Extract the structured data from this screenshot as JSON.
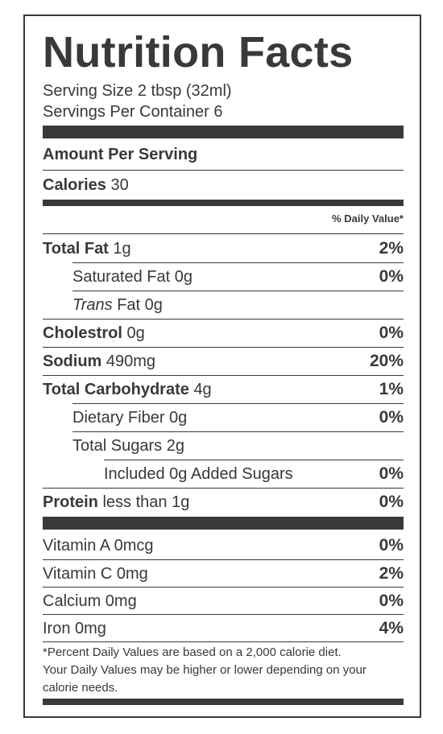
{
  "title": "Nutrition Facts",
  "serving_size": "Serving Size 2 tbsp (32ml)",
  "servings_per_container": "Servings Per Container 6",
  "amount_per_serving": "Amount Per Serving",
  "calories": {
    "label": "Calories",
    "value": "30"
  },
  "daily_value_header": "% Daily Value*",
  "nutrients": {
    "total_fat": {
      "label": "Total Fat",
      "amount": "1g",
      "dv": "2%"
    },
    "saturated_fat": {
      "label": "Saturated Fat 0g",
      "dv": "0%"
    },
    "trans_fat": {
      "label_italic": "Trans",
      "label_rest": "Fat 0g"
    },
    "cholesterol": {
      "label": "Cholestrol",
      "amount": "0g",
      "dv": "0%"
    },
    "sodium": {
      "label": "Sodium",
      "amount": "490mg",
      "dv": "20%"
    },
    "total_carbohydrate": {
      "label": "Total Carbohydrate",
      "amount": "4g",
      "dv": "1%"
    },
    "dietary_fiber": {
      "label": "Dietary Fiber 0g",
      "dv": "0%"
    },
    "total_sugars": {
      "label": "Total Sugars 2g"
    },
    "added_sugars": {
      "label": "Included 0g Added Sugars",
      "dv": "0%"
    },
    "protein": {
      "label": "Protein",
      "amount": "less than 1g",
      "dv": "0%"
    }
  },
  "vitamins": {
    "vitamin_a": {
      "label": "Vitamin A 0mcg",
      "dv": "0%"
    },
    "vitamin_c": {
      "label": "Vitamin C 0mg",
      "dv": "2%"
    },
    "calcium": {
      "label": "Calcium 0mg",
      "dv": "0%"
    },
    "iron": {
      "label": "Iron 0mg",
      "dv": "4%"
    }
  },
  "footnote": {
    "line1": "*Percent Daily Values are based on a 2,000 calorie diet.",
    "line2": "Your Daily Values may be higher or lower depending on your",
    "line3": "calorie needs."
  }
}
